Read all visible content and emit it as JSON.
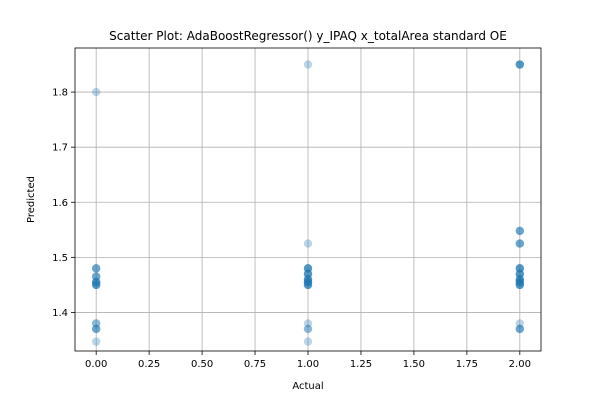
{
  "chart_data": {
    "type": "scatter",
    "title": "Scatter Plot: AdaBoostRegressor() y_IPAQ x_totalArea standard OE",
    "xlabel": "Actual",
    "ylabel": "Predicted",
    "xlim": [
      -0.1,
      2.1
    ],
    "ylim": [
      1.33,
      1.88
    ],
    "xticks": [
      0.0,
      0.25,
      0.5,
      0.75,
      1.0,
      1.25,
      1.5,
      1.75,
      2.0
    ],
    "xtick_labels": [
      "0.00",
      "0.25",
      "0.50",
      "0.75",
      "1.00",
      "1.25",
      "1.50",
      "1.75",
      "2.00"
    ],
    "yticks": [
      1.4,
      1.5,
      1.6,
      1.7,
      1.8
    ],
    "ytick_labels": [
      "1.4",
      "1.5",
      "1.6",
      "1.7",
      "1.8"
    ],
    "grid": true,
    "marker_color": "#1f77b4",
    "marker_alpha": 0.3,
    "series": [
      {
        "points": [
          {
            "x": 0,
            "y": 1.8,
            "n": 1
          },
          {
            "x": 0,
            "y": 1.48,
            "n": 3
          },
          {
            "x": 0,
            "y": 1.465,
            "n": 3
          },
          {
            "x": 0,
            "y": 1.455,
            "n": 4
          },
          {
            "x": 0,
            "y": 1.45,
            "n": 4
          },
          {
            "x": 0,
            "y": 1.38,
            "n": 2
          },
          {
            "x": 0,
            "y": 1.37,
            "n": 3
          },
          {
            "x": 0,
            "y": 1.347,
            "n": 1
          },
          {
            "x": 1,
            "y": 1.85,
            "n": 1
          },
          {
            "x": 1,
            "y": 1.525,
            "n": 1
          },
          {
            "x": 1,
            "y": 1.48,
            "n": 4
          },
          {
            "x": 1,
            "y": 1.47,
            "n": 4
          },
          {
            "x": 1,
            "y": 1.46,
            "n": 4
          },
          {
            "x": 1,
            "y": 1.455,
            "n": 4
          },
          {
            "x": 1,
            "y": 1.45,
            "n": 4
          },
          {
            "x": 1,
            "y": 1.38,
            "n": 1
          },
          {
            "x": 1,
            "y": 1.37,
            "n": 2
          },
          {
            "x": 1,
            "y": 1.347,
            "n": 1
          },
          {
            "x": 2,
            "y": 1.85,
            "n": 4
          },
          {
            "x": 2,
            "y": 1.548,
            "n": 3
          },
          {
            "x": 2,
            "y": 1.525,
            "n": 3
          },
          {
            "x": 2,
            "y": 1.48,
            "n": 4
          },
          {
            "x": 2,
            "y": 1.47,
            "n": 4
          },
          {
            "x": 2,
            "y": 1.46,
            "n": 4
          },
          {
            "x": 2,
            "y": 1.455,
            "n": 4
          },
          {
            "x": 2,
            "y": 1.45,
            "n": 4
          },
          {
            "x": 2,
            "y": 1.38,
            "n": 1
          },
          {
            "x": 2,
            "y": 1.37,
            "n": 3
          }
        ]
      }
    ]
  }
}
